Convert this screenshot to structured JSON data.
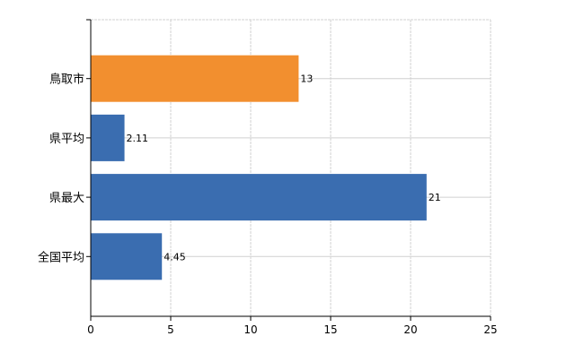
{
  "chart_data": {
    "type": "bar",
    "orientation": "horizontal",
    "categories": [
      "鳥取市",
      "県平均",
      "県最大",
      "全国平均"
    ],
    "values": [
      13,
      2.11,
      21,
      4.45
    ],
    "data_labels": [
      "13",
      "2.11",
      "21",
      "4.45"
    ],
    "colors": [
      "#f28f2f",
      "#3a6db0",
      "#3a6db0",
      "#3a6db0"
    ],
    "title": "",
    "xlabel": "",
    "ylabel": "",
    "xlim": [
      0,
      25
    ],
    "xticks": [
      "0",
      "5",
      "10",
      "15",
      "20",
      "25"
    ],
    "grid": true,
    "legend": "none"
  }
}
